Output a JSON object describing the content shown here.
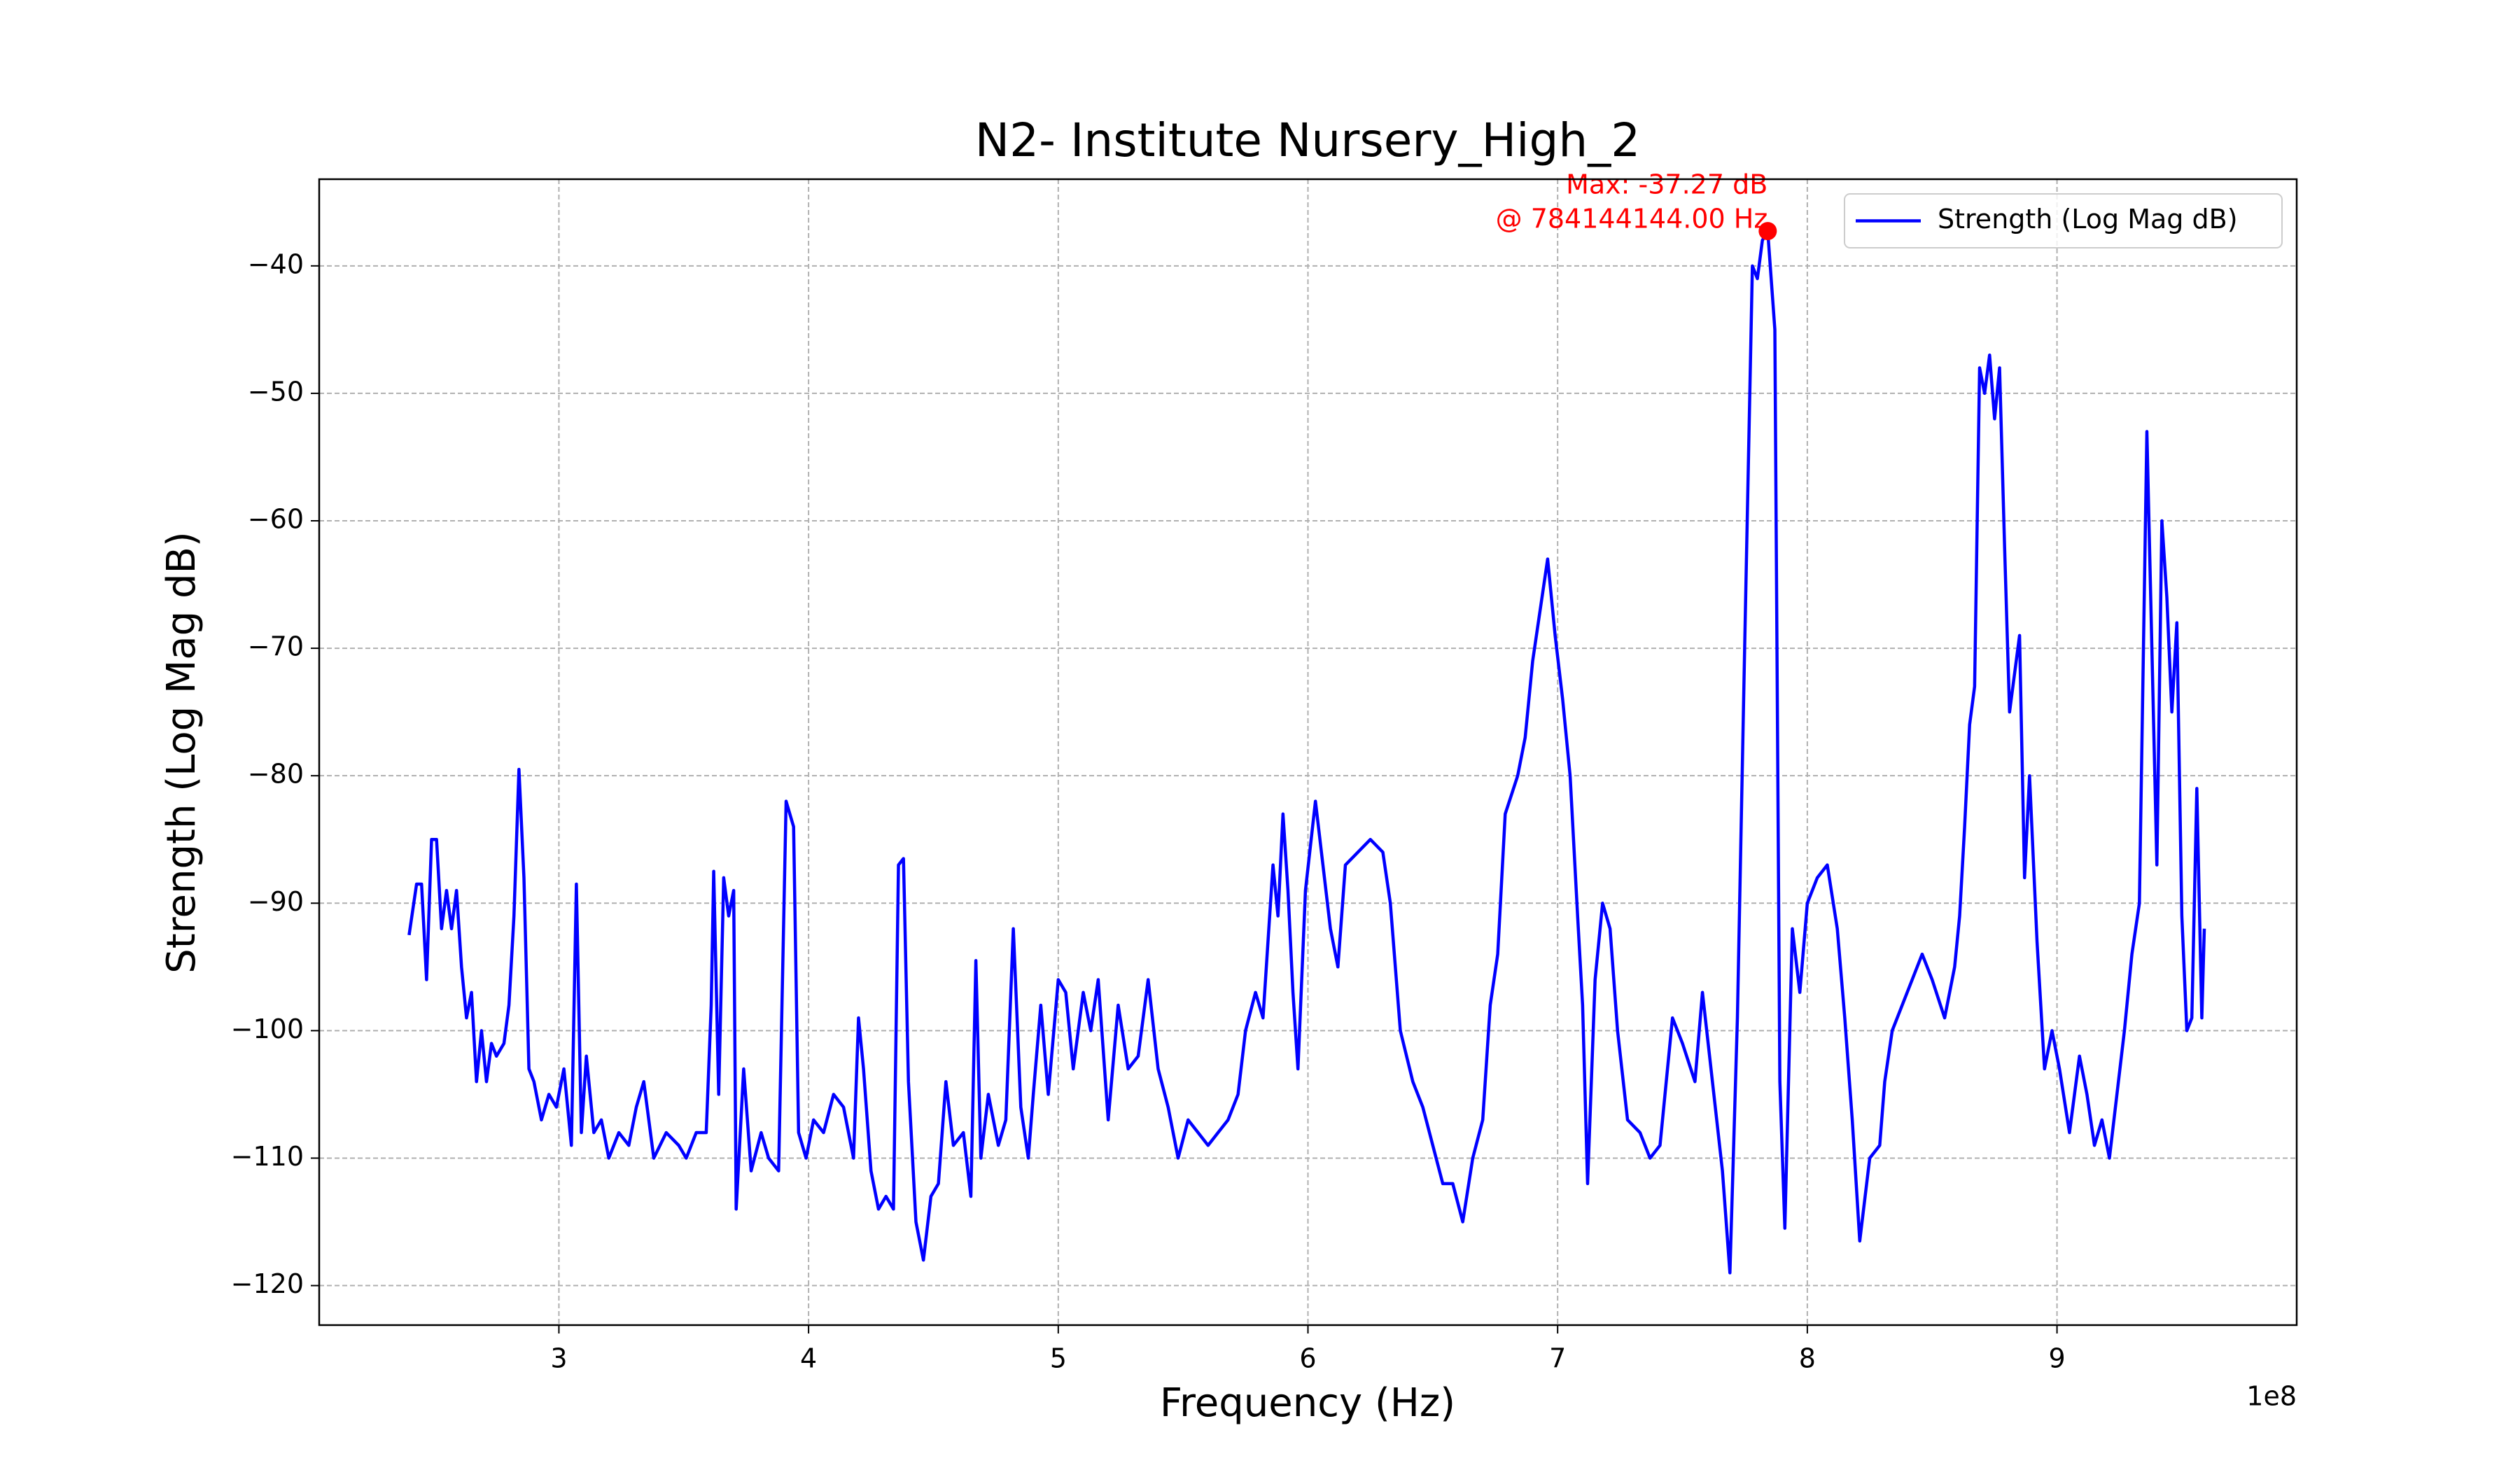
{
  "chart_data": {
    "type": "line",
    "title": "N2- Institute Nursery_High_2",
    "xlabel": "Frequency (Hz)",
    "ylabel": "Strength (Log Mag dB)",
    "x_offset_label": "1e8",
    "xlim": [
      204000000,
      996000000
    ],
    "ylim": [
      -123.1,
      -33.2
    ],
    "xticks": [
      {
        "value": 300000000,
        "label": "3"
      },
      {
        "value": 400000000,
        "label": "4"
      },
      {
        "value": 500000000,
        "label": "5"
      },
      {
        "value": 600000000,
        "label": "6"
      },
      {
        "value": 700000000,
        "label": "7"
      },
      {
        "value": 800000000,
        "label": "8"
      },
      {
        "value": 900000000,
        "label": "9"
      }
    ],
    "yticks": [
      {
        "value": -120,
        "label": "−120"
      },
      {
        "value": -110,
        "label": "−110"
      },
      {
        "value": -100,
        "label": "−100"
      },
      {
        "value": -90,
        "label": "−90"
      },
      {
        "value": -80,
        "label": "−80"
      },
      {
        "value": -70,
        "label": "−70"
      },
      {
        "value": -60,
        "label": "−60"
      },
      {
        "value": -50,
        "label": "−50"
      },
      {
        "value": -40,
        "label": "−40"
      }
    ],
    "grid": true,
    "legend": "upper right",
    "x": [
      240000000,
      243000000,
      245000000,
      247000000,
      249000000,
      251000000,
      253000000,
      255000000,
      257000000,
      259000000,
      261000000,
      263000000,
      265000000,
      267000000,
      269000000,
      271000000,
      273000000,
      275000000,
      278000000,
      280000000,
      282000000,
      284000000,
      286000000,
      288000000,
      290000000,
      293000000,
      296000000,
      299000000,
      302000000,
      305000000,
      307000000,
      309000000,
      311000000,
      314000000,
      317000000,
      320000000,
      324000000,
      328000000,
      331000000,
      334000000,
      338000000,
      343000000,
      348000000,
      351000000,
      355000000,
      359000000,
      361000000,
      362000000,
      364000000,
      366000000,
      368000000,
      370000000,
      371000000,
      374000000,
      377000000,
      381000000,
      384000000,
      388000000,
      391000000,
      394000000,
      396000000,
      399000000,
      402000000,
      406000000,
      410000000,
      414000000,
      418000000,
      420000000,
      422000000,
      425000000,
      428000000,
      431000000,
      434000000,
      436000000,
      438000000,
      440000000,
      443000000,
      446000000,
      449000000,
      452000000,
      455000000,
      458000000,
      462000000,
      465000000,
      467000000,
      469000000,
      472000000,
      476000000,
      479000000,
      482000000,
      485000000,
      488000000,
      490000000,
      493000000,
      496000000,
      500000000,
      503000000,
      506000000,
      510000000,
      513000000,
      516000000,
      520000000,
      524000000,
      528000000,
      532000000,
      536000000,
      540000000,
      544000000,
      548000000,
      552000000,
      556000000,
      560000000,
      564000000,
      568000000,
      572000000,
      575000000,
      579000000,
      582000000,
      586000000,
      588000000,
      590000000,
      592000000,
      594000000,
      596000000,
      599000000,
      603000000,
      606000000,
      609000000,
      612000000,
      615000000,
      620000000,
      625000000,
      630000000,
      633000000,
      637000000,
      642000000,
      646000000,
      650000000,
      654000000,
      658000000,
      662000000,
      666000000,
      670000000,
      673000000,
      676000000,
      679000000,
      684000000,
      687000000,
      690000000,
      693000000,
      696000000,
      699000000,
      702000000,
      705000000,
      708000000,
      710000000,
      712000000,
      715000000,
      718000000,
      721000000,
      724000000,
      728000000,
      733000000,
      737000000,
      741000000,
      746000000,
      750000000,
      755000000,
      758000000,
      762000000,
      766000000,
      769000000,
      772000000,
      775000000,
      778000000,
      780000000,
      782000000,
      784144144,
      787000000,
      789000000,
      791000000,
      794000000,
      797000000,
      800000000,
      804000000,
      808000000,
      812000000,
      815000000,
      818000000,
      821000000,
      825000000,
      829000000,
      831000000,
      834000000,
      838000000,
      842000000,
      846000000,
      850000000,
      855000000,
      859000000,
      861000000,
      863000000,
      865000000,
      867000000,
      869000000,
      871000000,
      873000000,
      875000000,
      877000000,
      879000000,
      881000000,
      883000000,
      885000000,
      887000000,
      889000000,
      892000000,
      895000000,
      898000000,
      901000000,
      905000000,
      909000000,
      912000000,
      915000000,
      918000000,
      921000000,
      924000000,
      927000000,
      930000000,
      933000000,
      936000000,
      938000000,
      940000000,
      942000000,
      944000000,
      946000000,
      948000000,
      950000000,
      952000000,
      954000000,
      956000000,
      958000000,
      959000000
    ],
    "series": [
      {
        "name": "Strength (Log Mag dB)",
        "color": "#0000ff",
        "values": [
          -92.5,
          -88.5,
          -88.5,
          -96,
          -85,
          -85,
          -92,
          -89,
          -92,
          -89,
          -95,
          -99,
          -97,
          -104,
          -100,
          -104,
          -101,
          -102,
          -101,
          -98,
          -91,
          -79.5,
          -88,
          -103,
          -104,
          -107,
          -105,
          -106,
          -103,
          -109,
          -88.5,
          -108,
          -102,
          -108,
          -107,
          -110,
          -108,
          -109,
          -106,
          -104,
          -110,
          -108,
          -109,
          -110,
          -108,
          -108,
          -98,
          -87.5,
          -105,
          -88,
          -91,
          -89,
          -114,
          -103,
          -111,
          -108,
          -110,
          -111,
          -82,
          -84,
          -108,
          -110,
          -107,
          -108,
          -105,
          -106,
          -110,
          -99,
          -103,
          -111,
          -114,
          -113,
          -114,
          -87,
          -86.5,
          -104,
          -115,
          -118,
          -113,
          -112,
          -104,
          -109,
          -108,
          -113,
          -94.5,
          -110,
          -105,
          -109,
          -107,
          -92,
          -106,
          -110,
          -105,
          -98,
          -105,
          -96,
          -97,
          -103,
          -97,
          -100,
          -96,
          -107,
          -98,
          -103,
          -102,
          -96,
          -103,
          -106,
          -110,
          -107,
          -108,
          -109,
          -108,
          -107,
          -105,
          -100,
          -97,
          -99,
          -87,
          -91,
          -83,
          -89,
          -97,
          -103,
          -89,
          -82,
          -87,
          -92,
          -95,
          -87,
          -86,
          -85,
          -86,
          -90,
          -100,
          -104,
          -106,
          -109,
          -112,
          -112,
          -115,
          -110,
          -107,
          -98,
          -94,
          -83,
          -80,
          -77,
          -71,
          -67,
          -63,
          -69,
          -74,
          -80,
          -91,
          -98,
          -112,
          -96,
          -90,
          -92,
          -100,
          -107,
          -108,
          -110,
          -109,
          -99,
          -101,
          -104,
          -97,
          -104,
          -111,
          -119,
          -99,
          -69,
          -40,
          -41,
          -38,
          -37.27,
          -45,
          -104,
          -115.5,
          -92,
          -97,
          -90,
          -88,
          -87,
          -92,
          -99,
          -107,
          -116.5,
          -110,
          -109,
          -104,
          -100,
          -98,
          -96,
          -94,
          -96,
          -99,
          -95,
          -91,
          -84,
          -76,
          -73,
          -48,
          -50,
          -47,
          -52,
          -48,
          -62,
          -75,
          -72,
          -69,
          -88,
          -80,
          -93,
          -103,
          -100,
          -103,
          -108,
          -102,
          -105,
          -109,
          -107,
          -110,
          -105,
          -100,
          -94,
          -90,
          -53,
          -70,
          -87,
          -60,
          -66,
          -75,
          -68,
          -91,
          -100,
          -99,
          -81,
          -99,
          -92
        ]
      }
    ],
    "max_marker": {
      "x": 784144144,
      "y": -37.27,
      "color": "#ff0000",
      "annotation": [
        "Max: -37.27 dB",
        "@ 784144144.00 Hz"
      ]
    }
  }
}
